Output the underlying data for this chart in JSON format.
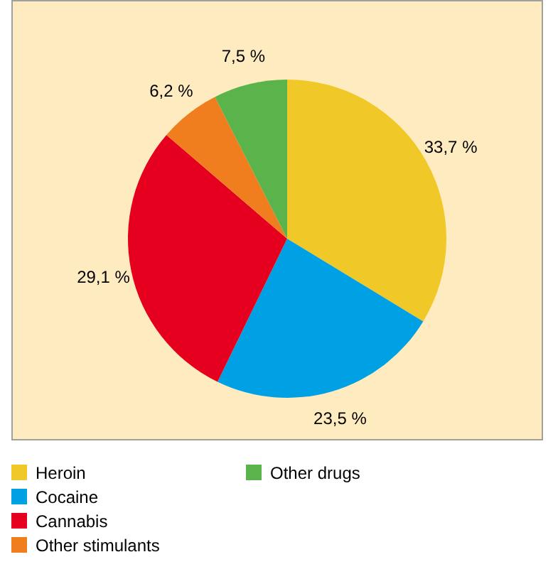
{
  "chart_data": {
    "type": "pie",
    "categories": [
      "Heroin",
      "Cocaine",
      "Cannabis",
      "Other stimulants",
      "Other drugs"
    ],
    "values": [
      33.7,
      23.5,
      29.1,
      6.2,
      7.5
    ],
    "colors": [
      "#f0c828",
      "#00a0e4",
      "#e4001e",
      "#f07d1e",
      "#5ab44b"
    ],
    "value_labels": [
      "33,7 %",
      "23,5 %",
      "29,1 %",
      "6,2 %",
      "7,5 %"
    ],
    "legend": "bottom"
  }
}
